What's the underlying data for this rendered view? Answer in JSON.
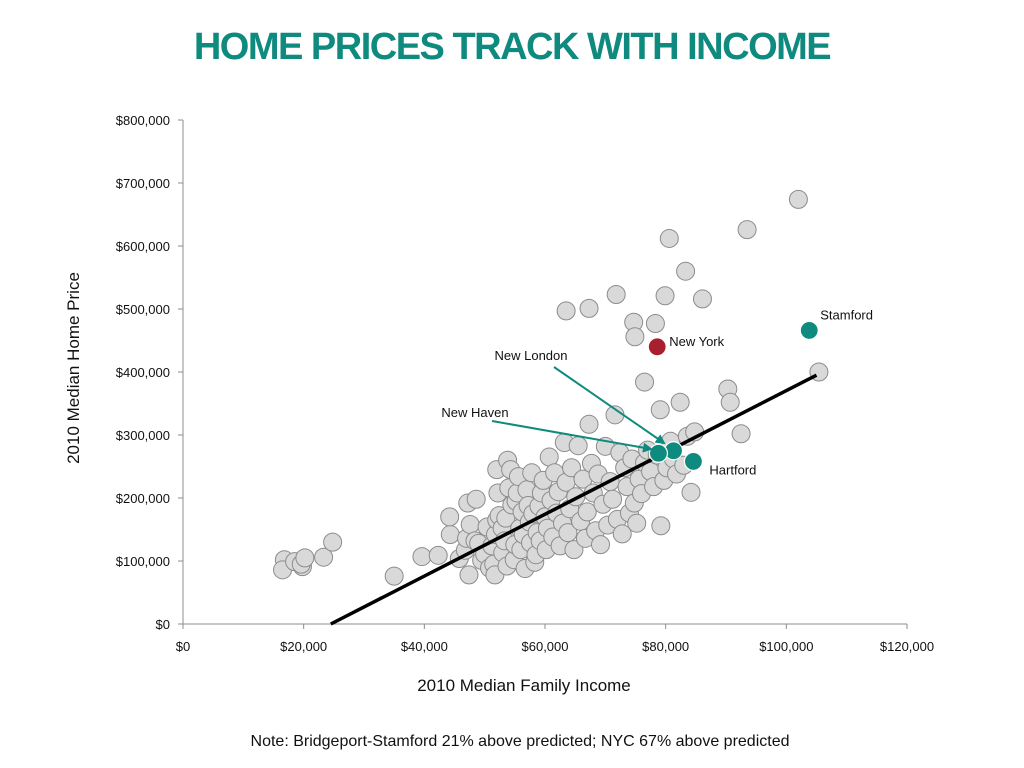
{
  "title": "HOME PRICES TRACK WITH INCOME",
  "note": "Note: Bridgeport-Stamford 21% above predicted; NYC 67% above predicted",
  "colors": {
    "title": "#0f8a7e",
    "point_fill": "#d9d9d9",
    "point_stroke": "#8c8c8c",
    "highlight_teal": "#0f8a7e",
    "highlight_red": "#a8202f",
    "trend_line": "#000000",
    "arrow": "#0f8a7e"
  },
  "chart_data": {
    "type": "scatter",
    "xlabel": "2010 Median Family Income",
    "ylabel": "2010 Median Home Price",
    "xlim": [
      0,
      120000
    ],
    "ylim": [
      0,
      800000
    ],
    "x_ticks": [
      0,
      20000,
      40000,
      60000,
      80000,
      100000,
      120000
    ],
    "x_tick_labels": [
      "$0",
      "$20,000",
      "$40,000",
      "$60,000",
      "$80,000",
      "$100,000",
      "$120,000"
    ],
    "y_ticks": [
      0,
      100000,
      200000,
      300000,
      400000,
      500000,
      600000,
      700000,
      800000
    ],
    "y_tick_labels": [
      "$0",
      "$100,000",
      "$200,000",
      "$300,000",
      "$400,000",
      "$500,000",
      "$600,000",
      "$700,000",
      "$800,000"
    ],
    "grid": false,
    "trend_line": {
      "x": [
        24500,
        105000
      ],
      "y": [
        0,
        395000
      ]
    },
    "points": [
      [
        16800,
        102000
      ],
      [
        16500,
        86000
      ],
      [
        18500,
        99000
      ],
      [
        19800,
        91000
      ],
      [
        19600,
        95000
      ],
      [
        20200,
        105000
      ],
      [
        23300,
        106000
      ],
      [
        24800,
        130000
      ],
      [
        35000,
        76000
      ],
      [
        39600,
        107000
      ],
      [
        42300,
        109000
      ],
      [
        44300,
        142000
      ],
      [
        44200,
        170000
      ],
      [
        45800,
        104000
      ],
      [
        46800,
        117000
      ],
      [
        47000,
        136000
      ],
      [
        47200,
        192000
      ],
      [
        47400,
        78000
      ],
      [
        47600,
        158000
      ],
      [
        48400,
        132000
      ],
      [
        48600,
        198000
      ],
      [
        49000,
        128000
      ],
      [
        49500,
        101000
      ],
      [
        50000,
        111000
      ],
      [
        50400,
        154000
      ],
      [
        50800,
        89000
      ],
      [
        51200,
        124000
      ],
      [
        51500,
        95000
      ],
      [
        51700,
        78000
      ],
      [
        51800,
        142000
      ],
      [
        52000,
        165000
      ],
      [
        52200,
        208000
      ],
      [
        52400,
        172000
      ],
      [
        52000,
        245000
      ],
      [
        52900,
        152000
      ],
      [
        53000,
        113000
      ],
      [
        53300,
        132000
      ],
      [
        53500,
        168000
      ],
      [
        53700,
        92000
      ],
      [
        53800,
        260000
      ],
      [
        54000,
        216000
      ],
      [
        54300,
        245000
      ],
      [
        54500,
        189000
      ],
      [
        54900,
        102000
      ],
      [
        55000,
        126000
      ],
      [
        55200,
        195000
      ],
      [
        55400,
        208000
      ],
      [
        55600,
        234000
      ],
      [
        55800,
        152000
      ],
      [
        56000,
        118000
      ],
      [
        56200,
        178000
      ],
      [
        56400,
        142000
      ],
      [
        56700,
        88000
      ],
      [
        57000,
        213000
      ],
      [
        57200,
        188000
      ],
      [
        57400,
        162000
      ],
      [
        57600,
        129000
      ],
      [
        57800,
        240000
      ],
      [
        58000,
        175000
      ],
      [
        58300,
        98000
      ],
      [
        58500,
        110000
      ],
      [
        58700,
        145000
      ],
      [
        59000,
        187000
      ],
      [
        59200,
        132000
      ],
      [
        59400,
        208000
      ],
      [
        59700,
        228000
      ],
      [
        60000,
        170000
      ],
      [
        60200,
        118000
      ],
      [
        60400,
        152000
      ],
      [
        60700,
        265000
      ],
      [
        61000,
        196000
      ],
      [
        61300,
        138000
      ],
      [
        61600,
        240000
      ],
      [
        61900,
        176000
      ],
      [
        62200,
        210000
      ],
      [
        62500,
        124000
      ],
      [
        62900,
        160000
      ],
      [
        63200,
        288000
      ],
      [
        63500,
        225000
      ],
      [
        63800,
        145000
      ],
      [
        64100,
        183000
      ],
      [
        64400,
        248000
      ],
      [
        64800,
        118000
      ],
      [
        65100,
        202000
      ],
      [
        65500,
        283000
      ],
      [
        65900,
        163000
      ],
      [
        66300,
        230000
      ],
      [
        66700,
        136000
      ],
      [
        67000,
        178000
      ],
      [
        67300,
        317000
      ],
      [
        67700,
        255000
      ],
      [
        68000,
        208000
      ],
      [
        68400,
        148000
      ],
      [
        68800,
        238000
      ],
      [
        69200,
        126000
      ],
      [
        69600,
        190000
      ],
      [
        70000,
        282000
      ],
      [
        70400,
        157000
      ],
      [
        70800,
        226000
      ],
      [
        71200,
        198000
      ],
      [
        71600,
        332000
      ],
      [
        72000,
        166000
      ],
      [
        72400,
        272000
      ],
      [
        72800,
        143000
      ],
      [
        73200,
        248000
      ],
      [
        73600,
        218000
      ],
      [
        74000,
        176000
      ],
      [
        74400,
        262000
      ],
      [
        74800,
        192000
      ],
      [
        75200,
        160000
      ],
      [
        75600,
        230000
      ],
      [
        76000,
        207000
      ],
      [
        76500,
        256000
      ],
      [
        77000,
        276000
      ],
      [
        77500,
        242000
      ],
      [
        78000,
        218000
      ],
      [
        78600,
        268000
      ],
      [
        79200,
        156000
      ],
      [
        79700,
        228000
      ],
      [
        80200,
        248000
      ],
      [
        80800,
        290000
      ],
      [
        81300,
        262000
      ],
      [
        81800,
        238000
      ],
      [
        82400,
        352000
      ],
      [
        83000,
        252000
      ],
      [
        83600,
        298000
      ],
      [
        84200,
        209000
      ],
      [
        84800,
        305000
      ],
      [
        63500,
        497000
      ],
      [
        67300,
        501000
      ],
      [
        71800,
        523000
      ],
      [
        74700,
        479000
      ],
      [
        74900,
        456000
      ],
      [
        76500,
        384000
      ],
      [
        78300,
        477000
      ],
      [
        79100,
        340000
      ],
      [
        79900,
        521000
      ],
      [
        80600,
        612000
      ],
      [
        83300,
        560000
      ],
      [
        86100,
        516000
      ],
      [
        90300,
        373000
      ],
      [
        90700,
        352000
      ],
      [
        92500,
        302000
      ],
      [
        93500,
        626000
      ],
      [
        102000,
        674000
      ],
      [
        105400,
        400000
      ]
    ],
    "highlighted_points": [
      {
        "name": "Stamford",
        "x": 103800,
        "y": 466000,
        "color": "teal"
      },
      {
        "name": "New York",
        "x": 78600,
        "y": 440000,
        "color": "red"
      },
      {
        "name": "Hartford",
        "x": 84600,
        "y": 258000,
        "color": "teal"
      },
      {
        "name": "New London",
        "x": 81300,
        "y": 275000,
        "color": "teal"
      },
      {
        "name": "New Haven",
        "x": 78800,
        "y": 271000,
        "color": "teal"
      }
    ]
  }
}
